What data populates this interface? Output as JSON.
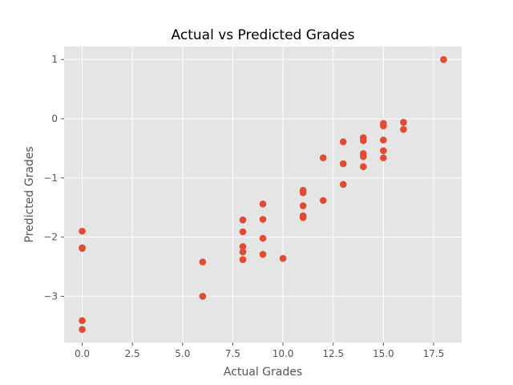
{
  "chart_data": {
    "type": "scatter",
    "title": "Actual vs Predicted Grades",
    "xlabel": "Actual Grades",
    "ylabel": "Predicted Grades",
    "xlim": [
      -0.9,
      18.9
    ],
    "ylim": [
      -3.78,
      1.22
    ],
    "xticks": [
      0,
      2.5,
      5,
      7.5,
      10,
      12.5,
      15,
      17.5
    ],
    "xtick_labels": [
      "0.0",
      "2.5",
      "5.0",
      "7.5",
      "10.0",
      "12.5",
      "15.0",
      "17.5"
    ],
    "yticks": [
      1,
      0,
      -1,
      -2,
      -3
    ],
    "ytick_labels": [
      "1",
      "0",
      "−1",
      "−2",
      "−3"
    ],
    "grid": true,
    "style": "ggplot",
    "colors": {
      "panel_background": "#e5e5e5",
      "marker": "#e24a33",
      "grid": "#ffffff"
    },
    "points": [
      {
        "x": 0,
        "y": -1.9
      },
      {
        "x": 0,
        "y": -2.18
      },
      {
        "x": 0,
        "y": -2.19
      },
      {
        "x": 0,
        "y": -3.41
      },
      {
        "x": 0,
        "y": -3.56
      },
      {
        "x": 6,
        "y": -2.42
      },
      {
        "x": 6,
        "y": -3.0
      },
      {
        "x": 8,
        "y": -1.71
      },
      {
        "x": 8,
        "y": -1.91
      },
      {
        "x": 8,
        "y": -2.16
      },
      {
        "x": 8,
        "y": -2.25
      },
      {
        "x": 8,
        "y": -2.38
      },
      {
        "x": 9,
        "y": -1.44
      },
      {
        "x": 9,
        "y": -1.7
      },
      {
        "x": 9,
        "y": -2.02
      },
      {
        "x": 9,
        "y": -2.29
      },
      {
        "x": 10,
        "y": -2.36
      },
      {
        "x": 11,
        "y": -1.21
      },
      {
        "x": 11,
        "y": -1.25
      },
      {
        "x": 11,
        "y": -1.47
      },
      {
        "x": 11,
        "y": -1.64
      },
      {
        "x": 11,
        "y": -1.67
      },
      {
        "x": 12,
        "y": -0.66
      },
      {
        "x": 12,
        "y": -1.38
      },
      {
        "x": 13,
        "y": -0.39
      },
      {
        "x": 13,
        "y": -0.76
      },
      {
        "x": 13,
        "y": -1.11
      },
      {
        "x": 14,
        "y": -0.32
      },
      {
        "x": 14,
        "y": -0.37
      },
      {
        "x": 14,
        "y": -0.59
      },
      {
        "x": 14,
        "y": -0.64
      },
      {
        "x": 14,
        "y": -0.81
      },
      {
        "x": 15,
        "y": -0.08
      },
      {
        "x": 15,
        "y": -0.12
      },
      {
        "x": 15,
        "y": -0.36
      },
      {
        "x": 15,
        "y": -0.54
      },
      {
        "x": 15,
        "y": -0.66
      },
      {
        "x": 16,
        "y": -0.06
      },
      {
        "x": 16,
        "y": -0.18
      },
      {
        "x": 18,
        "y": 1.0
      }
    ]
  }
}
